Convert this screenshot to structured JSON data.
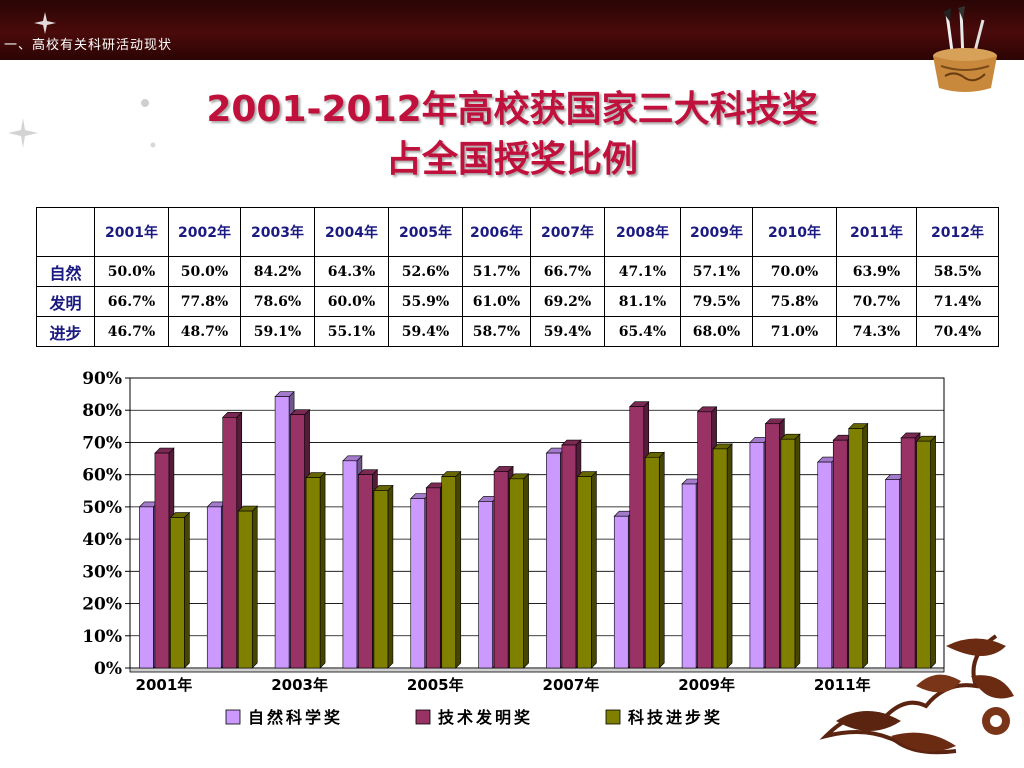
{
  "header": {
    "section": "一、高校有关科研活动现状"
  },
  "title": {
    "line1": "2001-2012年高校获国家三大科技奖",
    "line2": "占全国授奖比例"
  },
  "table": {
    "columns": [
      "2001年",
      "2002年",
      "2003年",
      "2004年",
      "2005年",
      "2006年",
      "2007年",
      "2008年",
      "2009年",
      "2010年",
      "2011年",
      "2012年"
    ],
    "rows": [
      {
        "label": "自然",
        "cells": [
          "50.0%",
          "50.0%",
          "84.2%",
          "64.3%",
          "52.6%",
          "51.7%",
          "66.7%",
          "47.1%",
          "57.1%",
          "70.0%",
          "63.9%",
          "58.5%"
        ]
      },
      {
        "label": "发明",
        "cells": [
          "66.7%",
          "77.8%",
          "78.6%",
          "60.0%",
          "55.9%",
          "61.0%",
          "69.2%",
          "81.1%",
          "79.5%",
          "75.8%",
          "70.7%",
          "71.4%"
        ]
      },
      {
        "label": "进步",
        "cells": [
          "46.7%",
          "48.7%",
          "59.1%",
          "55.1%",
          "59.4%",
          "58.7%",
          "59.4%",
          "65.4%",
          "68.0%",
          "71.0%",
          "74.3%",
          "70.4%"
        ]
      }
    ]
  },
  "chart_data": {
    "type": "bar",
    "categories": [
      "2001年",
      "2002年",
      "2003年",
      "2004年",
      "2005年",
      "2006年",
      "2007年",
      "2008年",
      "2009年",
      "2010年",
      "2011年",
      "2012年"
    ],
    "x_tick_labels": [
      "2001年",
      "",
      "2003年",
      "",
      "2005年",
      "",
      "2007年",
      "",
      "2009年",
      "",
      "2011年",
      ""
    ],
    "series": [
      {
        "name": "自然科学奖",
        "color": "#cc99ff",
        "values": [
          50.0,
          50.0,
          84.2,
          64.3,
          52.6,
          51.7,
          66.7,
          47.1,
          57.1,
          70.0,
          63.9,
          58.5
        ]
      },
      {
        "name": "技术发明奖",
        "color": "#993366",
        "values": [
          66.7,
          77.8,
          78.6,
          60.0,
          55.9,
          61.0,
          69.2,
          81.1,
          79.5,
          75.8,
          70.7,
          71.4
        ]
      },
      {
        "name": "科技进步奖",
        "color": "#808000",
        "values": [
          46.7,
          48.7,
          59.1,
          55.1,
          59.4,
          58.7,
          59.4,
          65.4,
          68.0,
          71.0,
          74.3,
          70.4
        ]
      }
    ],
    "y_ticks": [
      "0%",
      "10%",
      "20%",
      "30%",
      "40%",
      "50%",
      "60%",
      "70%",
      "80%",
      "90%"
    ],
    "ylim": [
      0,
      90
    ],
    "grid": true,
    "legend_position": "bottom"
  }
}
